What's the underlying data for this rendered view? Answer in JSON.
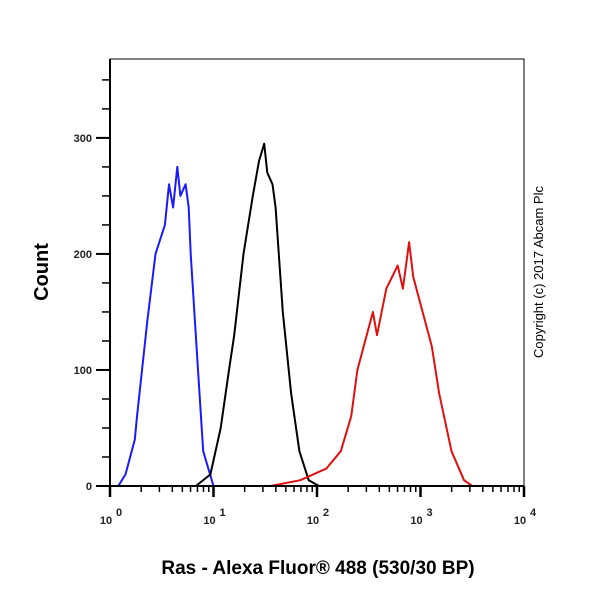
{
  "chart_data": {
    "type": "line",
    "title": "",
    "xlabel": "Ras - Alexa Fluor® 488 (530/30 BP)",
    "ylabel": "Count",
    "xscale": "log10",
    "xlim": [
      0,
      4
    ],
    "ylim": [
      0,
      368
    ],
    "x_ticks": [
      {
        "exp": 0,
        "label": "10",
        "sup": "0"
      },
      {
        "exp": 1,
        "label": "10",
        "sup": "1"
      },
      {
        "exp": 2,
        "label": "10",
        "sup": "2"
      },
      {
        "exp": 3,
        "label": "10",
        "sup": "3"
      },
      {
        "exp": 4,
        "label": "10",
        "sup": "4"
      }
    ],
    "y_ticks": [
      {
        "value": 0,
        "label": "0"
      },
      {
        "value": 100,
        "label": "100"
      },
      {
        "value": 200,
        "label": "200"
      },
      {
        "value": 300,
        "label": "300"
      }
    ],
    "grid": false,
    "annotation": "Copyright (c) 2017 Abcam Plc",
    "series": [
      {
        "name": "blue",
        "color": "#1a1aff",
        "log_x": [
          0.0,
          0.08,
          0.15,
          0.24,
          0.26,
          0.36,
          0.44,
          0.53,
          0.57,
          0.61,
          0.65,
          0.68,
          0.73,
          0.76,
          0.78,
          0.85,
          0.9,
          1.0,
          4.0
        ],
        "y": [
          0,
          0,
          10,
          40,
          59,
          142,
          200,
          225,
          260,
          240,
          275,
          250,
          260,
          240,
          200,
          100,
          30,
          0,
          0
        ]
      },
      {
        "name": "black",
        "color": "#000000",
        "log_x": [
          0.0,
          0.83,
          0.97,
          1.07,
          1.15,
          1.2,
          1.29,
          1.38,
          1.44,
          1.49,
          1.52,
          1.57,
          1.6,
          1.67,
          1.75,
          1.83,
          1.92,
          2.02,
          4.0
        ],
        "y": [
          0,
          0,
          10,
          50,
          100,
          130,
          200,
          250,
          280,
          295,
          270,
          260,
          240,
          150,
          80,
          30,
          5,
          0,
          0
        ]
      },
      {
        "name": "red",
        "color": "#e01010",
        "log_x": [
          0.0,
          1.55,
          1.84,
          2.09,
          2.23,
          2.33,
          2.39,
          2.54,
          2.58,
          2.67,
          2.78,
          2.83,
          2.89,
          2.93,
          2.99,
          3.11,
          3.18,
          3.3,
          3.42,
          3.5,
          4.0
        ],
        "y": [
          0,
          0,
          5,
          15,
          30,
          60,
          100,
          150,
          130,
          170,
          190,
          170,
          210,
          180,
          160,
          120,
          80,
          30,
          5,
          0,
          0
        ]
      }
    ]
  }
}
